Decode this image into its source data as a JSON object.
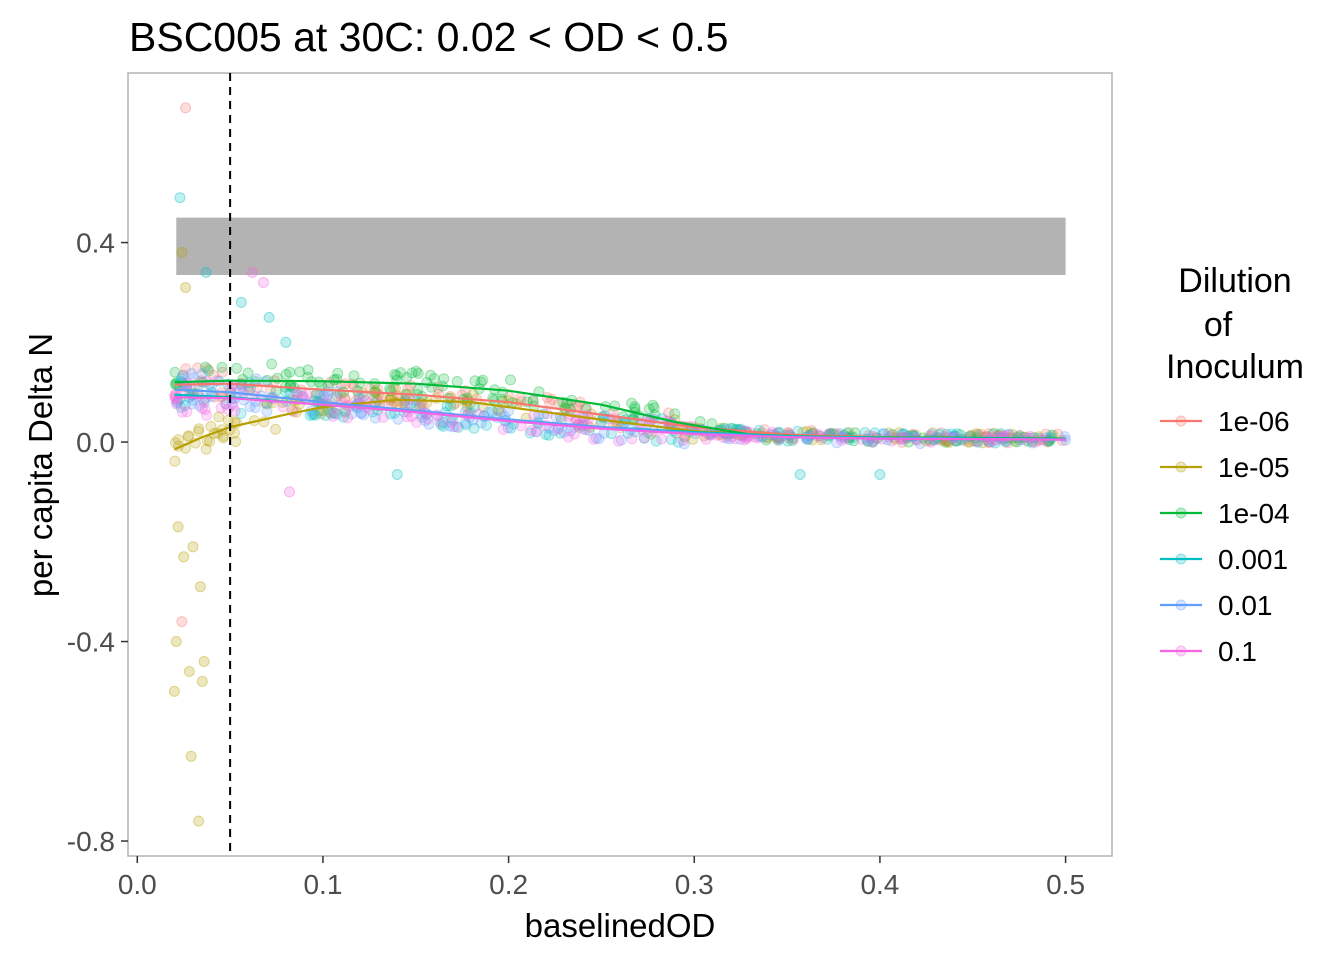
{
  "chart_data": {
    "type": "scatter",
    "title": "BSC005 at 30C: 0.02 < OD < 0.5",
    "xlabel": "baselinedOD",
    "ylabel": "per capita Delta N",
    "xlim": [
      -0.005,
      0.525
    ],
    "ylim": [
      -0.83,
      0.74
    ],
    "x_ticks": [
      0.0,
      0.1,
      0.2,
      0.3,
      0.4,
      0.5
    ],
    "x_tick_labels": [
      "0.0",
      "0.1",
      "0.2",
      "0.3",
      "0.4",
      "0.5"
    ],
    "y_ticks": [
      0.4,
      0.0,
      -0.4,
      -0.8
    ],
    "y_tick_labels": [
      "0.4",
      "0.0",
      "-0.4",
      "-0.8"
    ],
    "shaded_band": {
      "xmin": 0.021,
      "xmax": 0.5,
      "ymin": 0.335,
      "ymax": 0.45,
      "color": "#b3b3b3"
    },
    "vline": {
      "x": 0.05,
      "style": "dashed"
    },
    "legend": {
      "title_lines": [
        "Dilution",
        "of",
        "Inoculum"
      ],
      "placement": "right"
    },
    "series": [
      {
        "name": "1e-06",
        "color": "#F8766D",
        "smooth": [
          [
            0.02,
            0.115
          ],
          [
            0.05,
            0.117
          ],
          [
            0.1,
            0.105
          ],
          [
            0.15,
            0.095
          ],
          [
            0.2,
            0.08
          ],
          [
            0.25,
            0.055
          ],
          [
            0.3,
            0.03
          ],
          [
            0.35,
            0.015
          ],
          [
            0.4,
            0.01
          ],
          [
            0.45,
            0.008
          ],
          [
            0.5,
            0.007
          ]
        ]
      },
      {
        "name": "1e-05",
        "color": "#B79F00",
        "smooth": [
          [
            0.02,
            -0.015
          ],
          [
            0.035,
            0.01
          ],
          [
            0.05,
            0.03
          ],
          [
            0.08,
            0.055
          ],
          [
            0.1,
            0.07
          ],
          [
            0.14,
            0.085
          ],
          [
            0.18,
            0.08
          ],
          [
            0.22,
            0.06
          ],
          [
            0.26,
            0.04
          ],
          [
            0.3,
            0.022
          ],
          [
            0.35,
            0.012
          ],
          [
            0.4,
            0.01
          ],
          [
            0.45,
            0.008
          ],
          [
            0.5,
            0.006
          ]
        ]
      },
      {
        "name": "1e-04",
        "color": "#00BA38",
        "smooth": [
          [
            0.02,
            0.12
          ],
          [
            0.05,
            0.123
          ],
          [
            0.1,
            0.122
          ],
          [
            0.15,
            0.117
          ],
          [
            0.2,
            0.103
          ],
          [
            0.25,
            0.075
          ],
          [
            0.29,
            0.04
          ],
          [
            0.33,
            0.015
          ],
          [
            0.37,
            0.01
          ],
          [
            0.42,
            0.009
          ],
          [
            0.5,
            0.007
          ]
        ]
      },
      {
        "name": "0.001",
        "color": "#00BFC4",
        "smooth": [
          [
            0.02,
            0.095
          ],
          [
            0.05,
            0.09
          ],
          [
            0.1,
            0.075
          ],
          [
            0.15,
            0.06
          ],
          [
            0.2,
            0.045
          ],
          [
            0.25,
            0.03
          ],
          [
            0.3,
            0.02
          ],
          [
            0.35,
            0.012
          ],
          [
            0.4,
            0.009
          ],
          [
            0.5,
            0.006
          ]
        ]
      },
      {
        "name": "0.01",
        "color": "#619CFF",
        "smooth": [
          [
            0.02,
            0.105
          ],
          [
            0.05,
            0.1
          ],
          [
            0.1,
            0.08
          ],
          [
            0.15,
            0.063
          ],
          [
            0.2,
            0.045
          ],
          [
            0.25,
            0.03
          ],
          [
            0.3,
            0.018
          ],
          [
            0.35,
            0.01
          ],
          [
            0.4,
            0.007
          ],
          [
            0.5,
            0.005
          ]
        ]
      },
      {
        "name": "0.1",
        "color": "#F564E3",
        "smooth": [
          [
            0.02,
            0.09
          ],
          [
            0.05,
            0.088
          ],
          [
            0.1,
            0.075
          ],
          [
            0.15,
            0.06
          ],
          [
            0.2,
            0.042
          ],
          [
            0.25,
            0.027
          ],
          [
            0.3,
            0.016
          ],
          [
            0.35,
            0.01
          ],
          [
            0.4,
            0.007
          ],
          [
            0.5,
            0.005
          ]
        ]
      }
    ],
    "outlier_points": [
      {
        "series": "1e-06",
        "x": 0.026,
        "y": 0.67
      },
      {
        "series": "0.001",
        "x": 0.023,
        "y": 0.49
      },
      {
        "series": "1e-05",
        "x": 0.024,
        "y": 0.38
      },
      {
        "series": "1e-05",
        "x": 0.026,
        "y": 0.31
      },
      {
        "series": "0.001",
        "x": 0.037,
        "y": 0.34
      },
      {
        "series": "0.1",
        "x": 0.062,
        "y": 0.34
      },
      {
        "series": "0.1",
        "x": 0.068,
        "y": 0.32
      },
      {
        "series": "0.001",
        "x": 0.056,
        "y": 0.28
      },
      {
        "series": "0.001",
        "x": 0.071,
        "y": 0.25
      },
      {
        "series": "0.1",
        "x": 0.082,
        "y": -0.1
      },
      {
        "series": "1e-05",
        "x": 0.02,
        "y": -0.5
      },
      {
        "series": "1e-05",
        "x": 0.021,
        "y": -0.4
      },
      {
        "series": "1e-05",
        "x": 0.029,
        "y": -0.63
      },
      {
        "series": "1e-05",
        "x": 0.033,
        "y": -0.76
      },
      {
        "series": "1e-05",
        "x": 0.035,
        "y": -0.48
      },
      {
        "series": "1e-05",
        "x": 0.036,
        "y": -0.44
      },
      {
        "series": "1e-05",
        "x": 0.028,
        "y": -0.46
      },
      {
        "series": "1e-05",
        "x": 0.034,
        "y": -0.29
      },
      {
        "series": "1e-06",
        "x": 0.024,
        "y": -0.36
      },
      {
        "series": "1e-05",
        "x": 0.025,
        "y": -0.23
      },
      {
        "series": "1e-05",
        "x": 0.03,
        "y": -0.21
      },
      {
        "series": "1e-05",
        "x": 0.022,
        "y": -0.17
      },
      {
        "series": "0.001",
        "x": 0.08,
        "y": 0.2
      },
      {
        "series": "0.001",
        "x": 0.357,
        "y": -0.065
      },
      {
        "series": "0.001",
        "x": 0.4,
        "y": -0.065
      },
      {
        "series": "0.001",
        "x": 0.14,
        "y": -0.065
      }
    ]
  }
}
